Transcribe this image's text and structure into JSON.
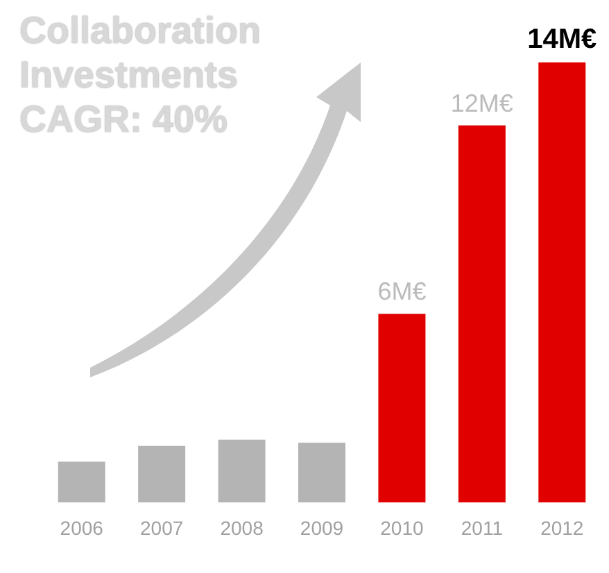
{
  "chart_data": {
    "type": "bar",
    "title": "Collaboration\nInvestments\nCAGR: 40%",
    "categories": [
      "2006",
      "2007",
      "2008",
      "2009",
      "2010",
      "2011",
      "2012"
    ],
    "values": [
      1.3,
      1.8,
      2.0,
      1.9,
      6,
      12,
      14
    ],
    "colors": [
      "#b4b4b4",
      "#b4b4b4",
      "#b4b4b4",
      "#b4b4b4",
      "#e00000",
      "#e00000",
      "#e00000"
    ],
    "value_labels": [
      null,
      null,
      null,
      null,
      "6M€",
      "12M€",
      "14M€"
    ],
    "grid": false,
    "legend": false
  }
}
